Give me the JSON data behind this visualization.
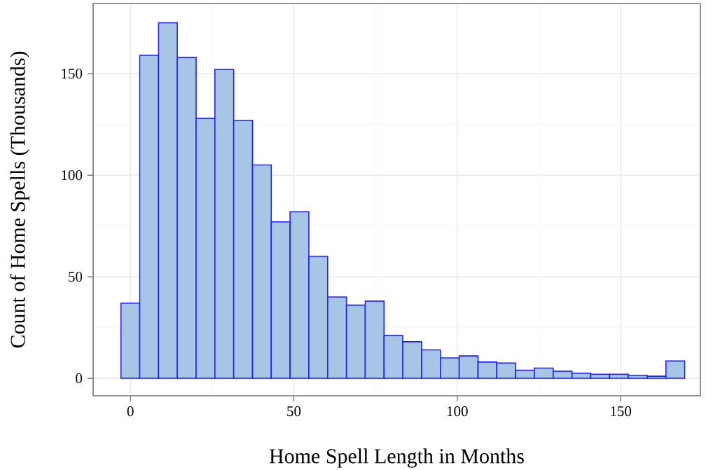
{
  "chart_data": {
    "type": "histogram",
    "xlabel": "Home Spell Length in Months",
    "ylabel": "Count of Home Spells (Thousands)",
    "bins": [
      -2.9,
      2.85,
      8.6,
      14.35,
      20.1,
      25.85,
      31.6,
      37.35,
      43.1,
      48.85,
      54.6,
      60.35,
      66.1,
      71.85,
      77.6,
      83.35,
      89.1,
      94.85,
      100.6,
      106.35,
      112.1,
      117.85,
      123.6,
      129.35,
      135.1,
      140.85,
      146.6,
      152.35,
      158.1,
      163.85,
      169.6
    ],
    "values": [
      37,
      159,
      175,
      158,
      128,
      152,
      127,
      105,
      77,
      82,
      60,
      40,
      36,
      38,
      21,
      18,
      14,
      10,
      11,
      8,
      7.5,
      4,
      5,
      3.5,
      2.5,
      2,
      2,
      1.5,
      1,
      8.5
    ],
    "color": "#a7c5e5",
    "xlim": [
      -11.4,
      174.4
    ],
    "ylim": [
      -8.6,
      184.5
    ],
    "xticks": [
      0,
      50,
      100,
      150
    ],
    "yticks": [
      0,
      50,
      100,
      150
    ],
    "grid": true
  }
}
